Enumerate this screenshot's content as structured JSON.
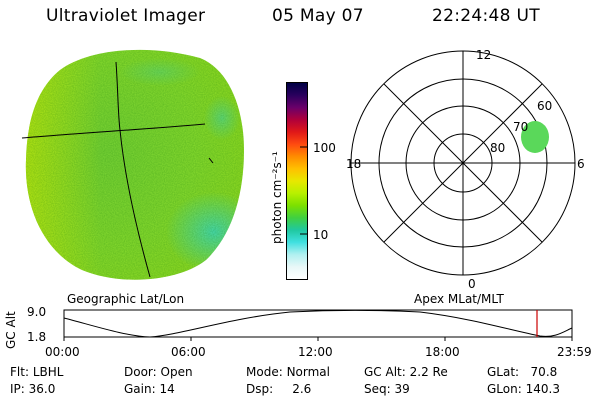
{
  "header": {
    "instrument": "Ultraviolet Imager",
    "date": "05 May 07",
    "time": "22:24:48 UT"
  },
  "colorbar": {
    "label": "photon cm⁻²s⁻¹",
    "ticks": [
      "100",
      "10"
    ],
    "colors": [
      "#000044",
      "#2a005e",
      "#6a006a",
      "#b0003a",
      "#e01818",
      "#ff4a10",
      "#ff8c00",
      "#ffc000",
      "#e8e800",
      "#b8f000",
      "#7ce000",
      "#40d040",
      "#20c8a0",
      "#40e0e0",
      "#b0f0f0",
      "#e8f8f8",
      "#ffffff"
    ]
  },
  "image_panel": {
    "caption": "Geographic Lat/Lon",
    "colors": {
      "edge": "#9ae020",
      "left": "#c8ee10",
      "center": "#7ed838",
      "cyan": "#40e0d0",
      "grid": "#000000"
    }
  },
  "polar_panel": {
    "caption": "Apex MLat/MLT",
    "mlt_labels": [
      "12",
      "18",
      "6",
      "0"
    ],
    "lat_labels": [
      "60",
      "70",
      "80"
    ],
    "blob_color": "#5ad85a"
  },
  "altitude_plot": {
    "ylabel": "GC Alt",
    "yticks": [
      "9.0",
      "1.8"
    ],
    "xticks": [
      "00:00",
      "06:00",
      "12:00",
      "18:00",
      "23:59"
    ],
    "marker_color": "#cc0000"
  },
  "info": {
    "row1": [
      {
        "label": "Flt:",
        "value": "LBHL"
      },
      {
        "label": "Door:",
        "value": "Open"
      },
      {
        "label": "Mode:",
        "value": "Normal"
      },
      {
        "label": "GC Alt:",
        "value": "2.2 Re"
      },
      {
        "label": "GLat:",
        "value": "70.8"
      }
    ],
    "row2": [
      {
        "label": "IP:",
        "value": "36.0"
      },
      {
        "label": "Gain:",
        "value": "14"
      },
      {
        "label": "Dsp:",
        "value": "2.6"
      },
      {
        "label": "Seq:",
        "value": "39"
      },
      {
        "label": "GLon:",
        "value": "140.3"
      }
    ]
  }
}
